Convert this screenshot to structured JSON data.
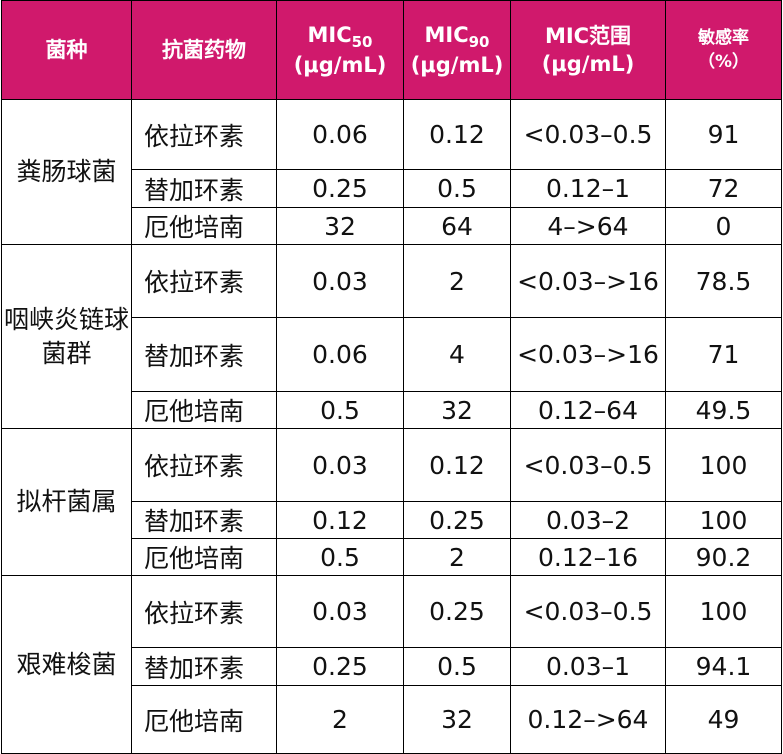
{
  "headers": {
    "species": "菌种",
    "drug": "抗菌药物",
    "mic50_main": "MIC",
    "mic50_sub": "50",
    "mic90_main": "MIC",
    "mic90_sub": "90",
    "unit": "(μg/mL)",
    "range_main": "MIC范围",
    "sensitivity_main": "敏感率",
    "sensitivity_unit": "（%）"
  },
  "groups": [
    {
      "species": "粪肠球菌",
      "rows": [
        {
          "drug": "依拉环素",
          "mic50": "0.06",
          "mic90": "0.12",
          "range": "<0.03–0.5",
          "rate": "91"
        },
        {
          "drug": "替加环素",
          "mic50": "0.25",
          "mic90": "0.5",
          "range": "0.12–1",
          "rate": "72"
        },
        {
          "drug": "厄他培南",
          "mic50": "32",
          "mic90": "64",
          "range": "4–>64",
          "rate": "0"
        }
      ]
    },
    {
      "species": "咽峡炎链球菌群",
      "rows": [
        {
          "drug": "依拉环素",
          "mic50": "0.03",
          "mic90": "2",
          "range": "<0.03–>16",
          "rate": "78.5"
        },
        {
          "drug": "替加环素",
          "mic50": "0.06",
          "mic90": "4",
          "range": "<0.03–>16",
          "rate": "71"
        },
        {
          "drug": "厄他培南",
          "mic50": "0.5",
          "mic90": "32",
          "range": "0.12–64",
          "rate": "49.5"
        }
      ]
    },
    {
      "species": "拟杆菌属",
      "rows": [
        {
          "drug": "依拉环素",
          "mic50": "0.03",
          "mic90": "0.12",
          "range": "<0.03–0.5",
          "rate": "100"
        },
        {
          "drug": "替加环素",
          "mic50": "0.12",
          "mic90": "0.25",
          "range": "0.03–2",
          "rate": "100"
        },
        {
          "drug": "厄他培南",
          "mic50": "0.5",
          "mic90": "2",
          "range": "0.12–16",
          "rate": "90.2"
        }
      ]
    },
    {
      "species": "艰难梭菌",
      "rows": [
        {
          "drug": "依拉环素",
          "mic50": "0.03",
          "mic90": "0.25",
          "range": "<0.03–0.5",
          "rate": "100"
        },
        {
          "drug": "替加环素",
          "mic50": "0.25",
          "mic90": "0.5",
          "range": "0.03–1",
          "rate": "94.1"
        },
        {
          "drug": "厄他培南",
          "mic50": "2",
          "mic90": "32",
          "range": "0.12–>64",
          "rate": "49"
        }
      ]
    }
  ]
}
